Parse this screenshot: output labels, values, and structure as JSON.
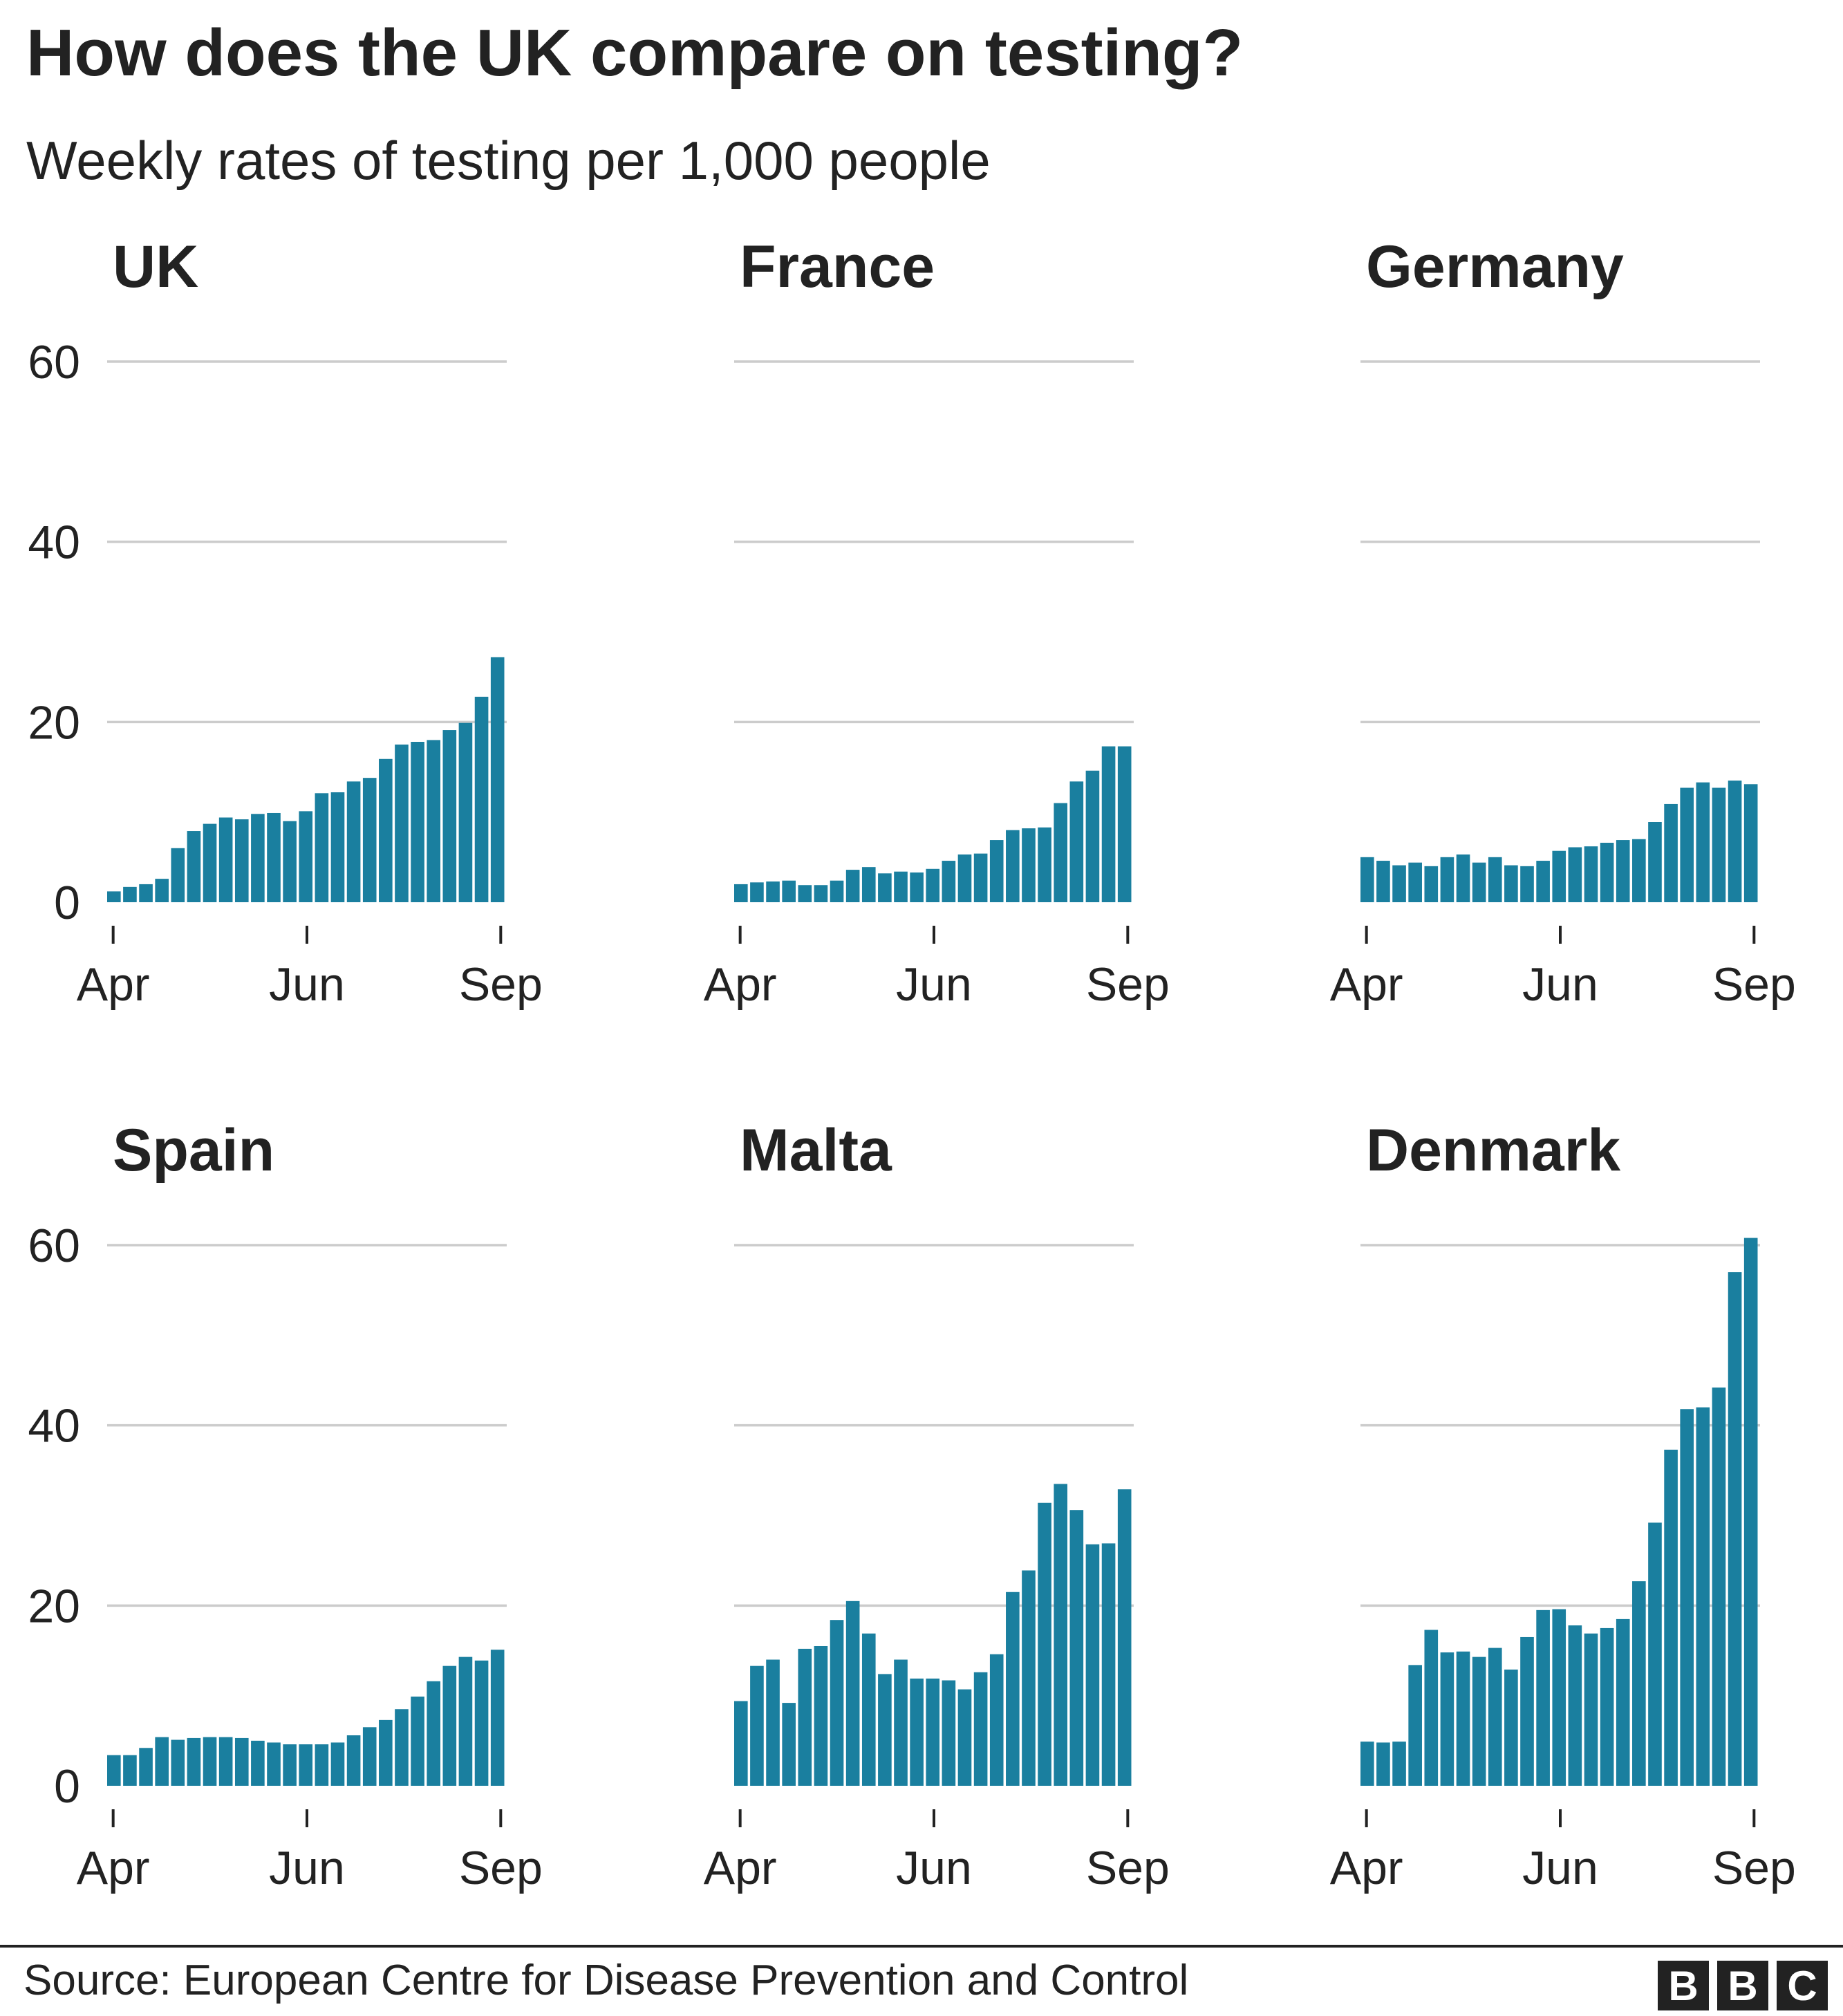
{
  "title": "How does the UK compare on testing?",
  "subtitle": "Weekly rates of testing per 1,000 people",
  "source": "Source: European Centre for Disease Prevention and Control",
  "logo": [
    "B",
    "B",
    "C"
  ],
  "colors": {
    "bar": "#1a7f9f",
    "grid": "#cccccc",
    "text": "#222222"
  },
  "chart_data": [
    {
      "type": "bar",
      "title": "UK",
      "ylim": [
        0,
        60
      ],
      "yticks": [
        0,
        20,
        40,
        60
      ],
      "xticks": [
        "Apr",
        "Jun",
        "Sep"
      ],
      "values": [
        1.2,
        1.7,
        2.0,
        2.6,
        6.0,
        7.9,
        8.7,
        9.4,
        9.2,
        9.8,
        9.9,
        9.0,
        10.1,
        12.1,
        12.2,
        13.4,
        13.8,
        15.9,
        17.5,
        17.8,
        18.0,
        19.1,
        19.9,
        22.8,
        27.2
      ]
    },
    {
      "type": "bar",
      "title": "France",
      "ylim": [
        0,
        60
      ],
      "yticks": [
        0,
        20,
        40,
        60
      ],
      "xticks": [
        "Apr",
        "Jun",
        "Sep"
      ],
      "values": [
        2.0,
        2.2,
        2.3,
        2.4,
        1.9,
        1.9,
        2.4,
        3.6,
        3.9,
        3.2,
        3.4,
        3.3,
        3.7,
        4.6,
        5.3,
        5.4,
        6.9,
        8.0,
        8.2,
        8.3,
        11.0,
        13.4,
        14.6,
        17.3,
        17.3
      ]
    },
    {
      "type": "bar",
      "title": "Germany",
      "ylim": [
        0,
        60
      ],
      "yticks": [
        0,
        20,
        40,
        60
      ],
      "xticks": [
        "Apr",
        "Jun",
        "Sep"
      ],
      "values": [
        5.0,
        4.6,
        4.1,
        4.4,
        4.0,
        5.0,
        5.3,
        4.4,
        5.0,
        4.1,
        4.0,
        4.6,
        5.7,
        6.1,
        6.2,
        6.6,
        6.9,
        7.0,
        8.9,
        10.9,
        12.7,
        13.3,
        12.7,
        13.5,
        13.1
      ]
    },
    {
      "type": "bar",
      "title": "Spain",
      "ylim": [
        0,
        60
      ],
      "yticks": [
        0,
        20,
        40,
        60
      ],
      "xticks": [
        "Apr",
        "Jun",
        "Sep"
      ],
      "values": [
        3.4,
        3.4,
        4.2,
        5.4,
        5.1,
        5.3,
        5.4,
        5.4,
        5.3,
        5.0,
        4.8,
        4.6,
        4.6,
        4.6,
        4.8,
        5.6,
        6.5,
        7.3,
        8.5,
        9.9,
        11.6,
        13.3,
        14.3,
        13.9,
        15.1
      ]
    },
    {
      "type": "bar",
      "title": "Malta",
      "ylim": [
        0,
        60
      ],
      "yticks": [
        0,
        20,
        40,
        60
      ],
      "xticks": [
        "Apr",
        "Jun",
        "Sep"
      ],
      "values": [
        9.4,
        13.3,
        14.0,
        9.2,
        15.2,
        15.5,
        18.4,
        20.5,
        16.9,
        12.4,
        14.0,
        11.9,
        11.9,
        11.7,
        10.7,
        12.6,
        14.6,
        21.5,
        23.9,
        31.4,
        33.5,
        30.6,
        26.8,
        26.9,
        32.9
      ]
    },
    {
      "type": "bar",
      "title": "Denmark",
      "ylim": [
        0,
        60
      ],
      "yticks": [
        0,
        20,
        40,
        60
      ],
      "xticks": [
        "Apr",
        "Jun",
        "Sep"
      ],
      "values": [
        4.9,
        4.8,
        4.9,
        13.4,
        17.3,
        14.8,
        14.9,
        14.3,
        15.3,
        12.9,
        16.5,
        19.5,
        19.6,
        17.8,
        16.9,
        17.5,
        18.5,
        22.7,
        29.2,
        37.3,
        41.8,
        42.0,
        44.2,
        57.0,
        60.8
      ]
    }
  ]
}
